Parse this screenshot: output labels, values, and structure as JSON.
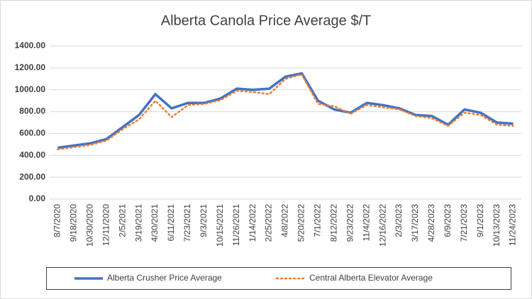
{
  "chart_data": {
    "type": "line",
    "title": "Alberta Canola Price Average $/T",
    "categories": [
      "8/7/2020",
      "9/18/2020",
      "10/30/2020",
      "12/11/2020",
      "2/5/2021",
      "3/19/2021",
      "4/30/2021",
      "6/11/2021",
      "7/23/2021",
      "9/3/2021",
      "10/15/2021",
      "11/26/2021",
      "1/14/2022",
      "2/25/2022",
      "4/8/2022",
      "5/20/2022",
      "7/1/2022",
      "8/12/2022",
      "9/23/2022",
      "11/4/2022",
      "12/16/2022",
      "2/3/2023",
      "3/17/2023",
      "4/28/2023",
      "6/9/2023",
      "7/21/2023",
      "9/1/2023",
      "10/13/2023",
      "11/24/2023"
    ],
    "series": [
      {
        "name": "Alberta Crusher Price Average",
        "color": "#4472c4",
        "style": "solid",
        "values": [
          470,
          490,
          510,
          550,
          660,
          770,
          960,
          830,
          880,
          880,
          920,
          1010,
          1000,
          1010,
          1120,
          1150,
          900,
          820,
          790,
          880,
          860,
          830,
          770,
          760,
          680,
          820,
          790,
          700,
          690
        ]
      },
      {
        "name": "Central Alberta Elevator Average",
        "color": "#ed7d31",
        "style": "dotted",
        "values": [
          455,
          475,
          495,
          535,
          640,
          730,
          900,
          750,
          860,
          870,
          905,
          990,
          980,
          960,
          1100,
          1140,
          870,
          850,
          780,
          860,
          840,
          820,
          760,
          740,
          670,
          790,
          770,
          680,
          670
        ]
      }
    ],
    "ylim": [
      0,
      1400
    ],
    "yticks": [
      {
        "value": 0,
        "label": "0.00"
      },
      {
        "value": 200,
        "label": "200.00"
      },
      {
        "value": 400,
        "label": "400.00"
      },
      {
        "value": 600,
        "label": "600.00"
      },
      {
        "value": 800,
        "label": "800.00"
      },
      {
        "value": 1000,
        "label": "1000.00"
      },
      {
        "value": 1200,
        "label": "1200.00"
      },
      {
        "value": 1400,
        "label": "1400.00"
      }
    ],
    "grid": true,
    "legend": "bottom"
  }
}
